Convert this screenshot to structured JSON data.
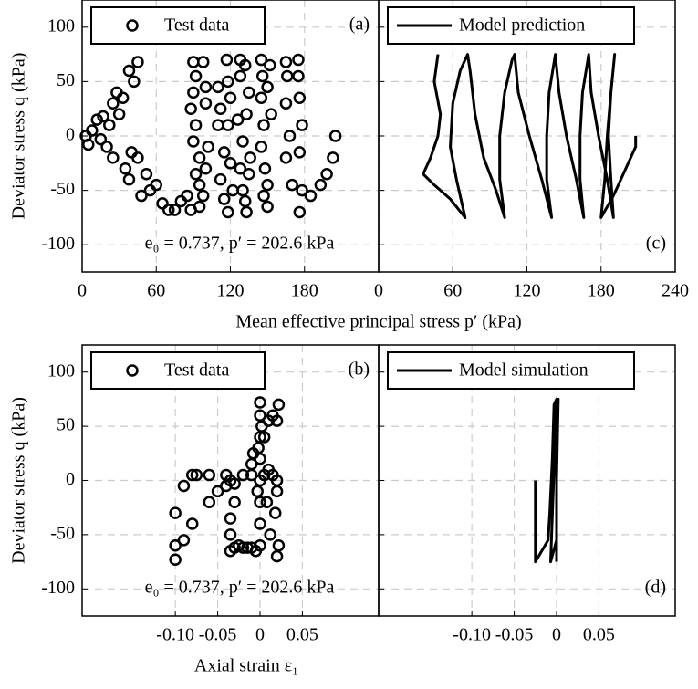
{
  "chart_data": [
    {
      "type": "scatter",
      "panel": "(a)",
      "legend": "Test data",
      "annotation": "e₀ = 0.737, p′ = 202.6 kPa",
      "xlabel": "Mean effective principal stress p′ (kPa)",
      "ylabel": "Deviator stress q (kPa)",
      "xlim": [
        0,
        240
      ],
      "ylim": [
        -125,
        125
      ],
      "xticks": [
        0,
        60,
        120,
        180
      ],
      "yticks": [
        -100,
        -50,
        0,
        50,
        100
      ],
      "grid": true,
      "color": "#000000",
      "x": [
        3,
        5,
        8,
        12,
        15,
        17,
        20,
        22,
        25,
        25,
        28,
        30,
        33,
        35,
        38,
        38,
        42,
        45,
        40,
        45,
        48,
        52,
        55,
        60,
        65,
        70,
        75,
        80,
        85,
        88,
        90,
        92,
        90,
        88,
        92,
        90,
        95,
        92,
        95,
        98,
        95,
        98,
        100,
        100,
        102,
        100,
        110,
        112,
        110,
        115,
        112,
        115,
        117,
        118,
        120,
        118,
        120,
        118,
        122,
        128,
        128,
        126,
        130,
        128,
        130,
        132,
        132,
        135,
        133,
        136,
        135,
        133,
        145,
        146,
        145,
        147,
        145,
        148,
        147,
        150,
        152,
        150,
        153,
        150,
        165,
        166,
        165,
        168,
        165,
        170,
        175,
        175,
        176,
        178,
        176,
        178,
        176,
        185,
        193,
        198,
        203,
        205
      ],
      "y": [
        0,
        -8,
        5,
        15,
        -3,
        18,
        -10,
        10,
        -20,
        30,
        40,
        20,
        35,
        -30,
        -40,
        60,
        50,
        68,
        -15,
        -20,
        -55,
        -35,
        -50,
        -45,
        -62,
        -68,
        -68,
        -60,
        -55,
        -68,
        68,
        55,
        40,
        25,
        10,
        -5,
        -20,
        -35,
        -45,
        -55,
        -65,
        68,
        45,
        30,
        -10,
        -30,
        45,
        25,
        10,
        -15,
        -40,
        -58,
        70,
        50,
        35,
        10,
        -25,
        -70,
        -50,
        70,
        55,
        15,
        -5,
        -30,
        -50,
        -60,
        65,
        40,
        20,
        -20,
        -35,
        -70,
        70,
        55,
        35,
        10,
        -10,
        -30,
        -55,
        -65,
        65,
        45,
        20,
        -45,
        68,
        55,
        30,
        0,
        -20,
        -45,
        70,
        55,
        35,
        10,
        -15,
        -50,
        -70,
        -55,
        -45,
        -35,
        -20,
        0
      ]
    },
    {
      "type": "line",
      "panel": "(c)",
      "legend": "Model prediction",
      "xlim": [
        0,
        240
      ],
      "ylim": [
        -125,
        125
      ],
      "xticks": [
        0,
        60,
        120,
        180,
        240
      ],
      "yticks": [
        -100,
        -50,
        0,
        50,
        100
      ],
      "ytick_labels": false,
      "grid": true,
      "color": "#000000",
      "x": [
        48,
        45,
        50,
        48,
        42,
        36,
        45,
        58,
        70,
        63,
        58,
        60,
        66,
        72,
        74,
        78,
        85,
        95,
        102,
        98,
        98,
        102,
        108,
        110,
        113,
        122,
        132,
        140,
        136,
        136,
        138,
        143,
        146,
        152,
        160,
        166,
        163,
        163,
        165,
        170,
        172,
        178,
        185,
        190,
        188,
        186,
        188,
        191,
        188,
        185,
        183,
        180,
        190,
        200,
        208,
        208
      ],
      "y": [
        75,
        50,
        20,
        0,
        -20,
        -35,
        -45,
        -58,
        -75,
        -40,
        -10,
        30,
        60,
        75,
        60,
        20,
        -20,
        -50,
        -75,
        -40,
        0,
        40,
        70,
        75,
        40,
        0,
        -40,
        -75,
        -40,
        0,
        40,
        75,
        40,
        0,
        -40,
        -75,
        -40,
        0,
        40,
        75,
        40,
        0,
        -40,
        -75,
        -40,
        0,
        40,
        75,
        40,
        0,
        -40,
        -75,
        -55,
        -30,
        -10,
        0
      ]
    },
    {
      "type": "scatter",
      "panel": "(b)",
      "legend": "Test data",
      "annotation": "e₀ = 0.737, p′ = 202.6 kPa",
      "xlabel": "Axial strain ε₁",
      "ylabel": "Deviator stress q (kPa)",
      "xlim": [
        -0.21,
        0.14
      ],
      "ylim": [
        -125,
        125
      ],
      "xticks": [
        {
          "value": -0.1,
          "label": "-0.10"
        },
        -0.05,
        0,
        0.05
      ],
      "yticks": [
        -100,
        -50,
        0,
        50,
        100
      ],
      "grid": true,
      "color": "#000000",
      "x": [
        -0.1,
        -0.1,
        -0.09,
        -0.1,
        -0.09,
        -0.08,
        -0.075,
        -0.06,
        -0.08,
        -0.06,
        -0.05,
        -0.04,
        -0.03,
        -0.04,
        -0.035,
        -0.03,
        -0.035,
        -0.035,
        -0.035,
        -0.03,
        -0.025,
        -0.02,
        -0.015,
        -0.01,
        -0.005,
        0,
        0,
        0,
        0,
        0,
        0,
        0,
        0,
        -0.002,
        -0.003,
        -0.02,
        -0.01,
        0.005,
        0.01,
        0.015,
        0.02,
        0.02,
        0.018,
        0.012,
        0.022,
        0.02,
        -0.01,
        -0.008,
        0.005,
        0.01,
        0.015,
        0.02,
        0.022,
        0.008,
        0.002
      ],
      "y": [
        -73,
        -60,
        -55,
        -30,
        -5,
        5,
        5,
        5,
        -40,
        -20,
        -10,
        -5,
        -3,
        5,
        0,
        -20,
        -35,
        -50,
        -65,
        -62,
        -60,
        -62,
        -62,
        -62,
        -65,
        -60,
        -40,
        -20,
        0,
        20,
        40,
        60,
        72,
        30,
        -10,
        5,
        5,
        5,
        10,
        5,
        0,
        -10,
        -30,
        -50,
        -60,
        -70,
        15,
        25,
        40,
        55,
        60,
        55,
        70,
        -20,
        50
      ]
    },
    {
      "type": "line",
      "panel": "(d)",
      "legend": "Model simulation",
      "xlim": [
        -0.21,
        0.14
      ],
      "ylim": [
        -125,
        125
      ],
      "xticks": [
        {
          "value": -0.1,
          "label": "-0.10"
        },
        -0.05,
        0,
        0.05
      ],
      "yticks": [
        -100,
        -50,
        0,
        50,
        100
      ],
      "ytick_labels": false,
      "grid": true,
      "color": "#000000",
      "x": [
        -0.025,
        -0.025,
        -0.01,
        -0.008,
        -0.005,
        -0.003,
        0,
        -0.007,
        0,
        0,
        0,
        0.002,
        0,
        0
      ],
      "y": [
        0,
        -75,
        -55,
        -30,
        20,
        70,
        75,
        -75,
        -55,
        -20,
        30,
        75,
        0,
        -75
      ]
    }
  ]
}
